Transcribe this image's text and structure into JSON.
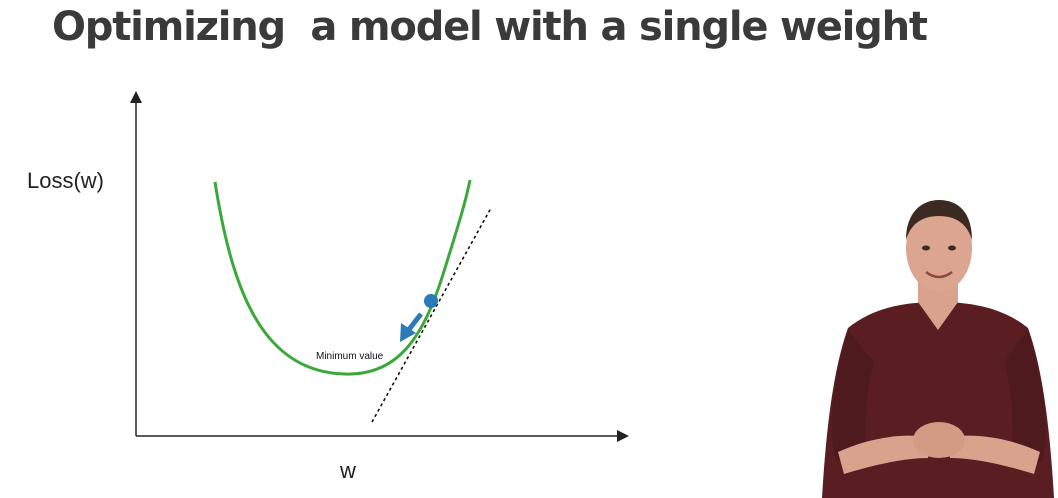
{
  "slide": {
    "title": "Optimizing  a model with a single weight"
  },
  "diagram": {
    "y_axis_label": "Loss(w)",
    "x_axis_label": "w",
    "annotation": "Minimum value",
    "colors": {
      "curve": "#3aa83a",
      "ball": "#2a7ab8",
      "arrow": "#2a7ab8",
      "tangent": "#111111",
      "axes": "#222222"
    }
  },
  "presenter": {
    "icon": "presenter-video-icon",
    "shirt_color": "#5a1e22"
  }
}
